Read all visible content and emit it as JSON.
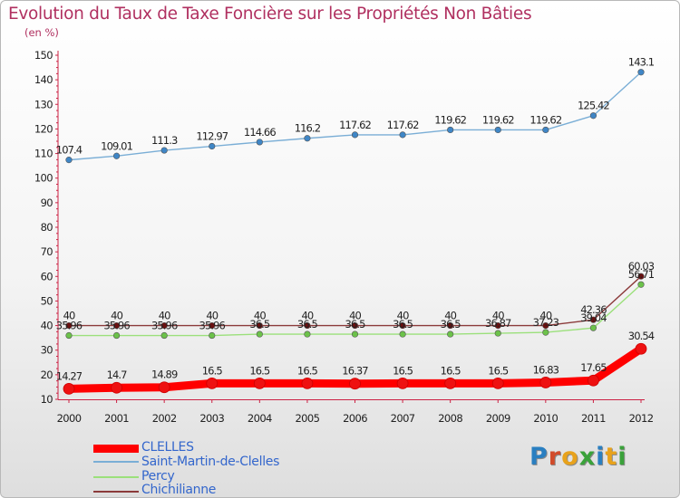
{
  "title": "Evolution du Taux de Taxe Foncière sur les Propriétés Non Bâties",
  "unit": "(en %)",
  "logo": {
    "text": "Proxiti",
    "colors": [
      "#2a7fc1",
      "#d24b2a",
      "#e8a21c",
      "#3aa23a",
      "#2a7fc1",
      "#e8a21c",
      "#3aa23a"
    ]
  },
  "chart_data": {
    "type": "line",
    "title": "Evolution du Taux de Taxe Foncière sur les Propriétés Non Bâties",
    "ylabel": "(en %)",
    "xlabel": "",
    "ylim": [
      10,
      150
    ],
    "yticks": [
      10,
      20,
      30,
      40,
      50,
      60,
      70,
      80,
      90,
      100,
      110,
      120,
      130,
      140,
      150
    ],
    "x": [
      "2000",
      "2001",
      "2002",
      "2003",
      "2004",
      "2005",
      "2006",
      "2007",
      "2008",
      "2009",
      "2010",
      "2011",
      "2012"
    ],
    "grid": false,
    "series": [
      {
        "name": "CLELLES",
        "color": "#ff0000",
        "marker": "#ee1111",
        "width": "heavy",
        "values": [
          14.27,
          14.7,
          14.89,
          16.5,
          16.5,
          16.5,
          16.37,
          16.5,
          16.5,
          16.5,
          16.83,
          17.65,
          30.54
        ],
        "labels": [
          "14.27",
          "14.7",
          "14.89",
          "16.5",
          "16.5",
          "16.5",
          "16.37",
          "16.5",
          "16.5",
          "16.5",
          "16.83",
          "17.65",
          "30.54"
        ]
      },
      {
        "name": "Saint-Martin-de-Clelles",
        "color": "#7aaed6",
        "marker": "#3f86c6",
        "width": "thin",
        "values": [
          107.4,
          109.01,
          111.3,
          112.97,
          114.66,
          116.2,
          117.62,
          117.62,
          119.62,
          119.62,
          119.62,
          125.42,
          143.1
        ],
        "labels": [
          "107.4",
          "109.01",
          "111.3",
          "112.97",
          "114.66",
          "116.2",
          "117.62",
          "117.62",
          "119.62",
          "119.62",
          "119.62",
          "125.42",
          "143.1"
        ]
      },
      {
        "name": "Percy",
        "color": "#9be07b",
        "marker": "#6cc24a",
        "width": "thin",
        "values": [
          35.96,
          35.96,
          35.96,
          35.96,
          36.5,
          36.5,
          36.5,
          36.5,
          36.5,
          36.87,
          37.23,
          39.04,
          56.71
        ],
        "labels": [
          "35.96",
          "35.96",
          "35.96",
          "35.96",
          "36.5",
          "36.5",
          "36.5",
          "36.5",
          "36.5",
          "36.87",
          "37.23",
          "39.04",
          "56.71"
        ]
      },
      {
        "name": "Chichilianne",
        "color": "#8b3a3a",
        "marker": "#6a1010",
        "width": "thin",
        "values": [
          40,
          40,
          40,
          40,
          40,
          40,
          40,
          40,
          40,
          40,
          40,
          42.36,
          60.03
        ],
        "labels": [
          "40",
          "40",
          "40",
          "40",
          "40",
          "40",
          "40",
          "40",
          "40",
          "40",
          "40",
          "42.36",
          "60.03"
        ]
      }
    ],
    "legend_position": "bottom-left"
  }
}
